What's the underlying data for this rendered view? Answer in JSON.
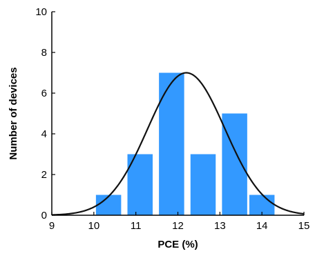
{
  "chart_data": {
    "type": "bar",
    "xlabel": "PCE (%)",
    "ylabel": "Number of devices",
    "xlim": [
      9,
      15
    ],
    "ylim": [
      0,
      10
    ],
    "xticks": [
      9,
      10,
      11,
      12,
      13,
      14,
      15
    ],
    "yticks": [
      0,
      2,
      4,
      6,
      8,
      10
    ],
    "bin_width": 0.6,
    "bars": [
      {
        "x": 10.35,
        "value": 1
      },
      {
        "x": 11.1,
        "value": 3
      },
      {
        "x": 11.85,
        "value": 7
      },
      {
        "x": 12.6,
        "value": 3
      },
      {
        "x": 13.35,
        "value": 5
      },
      {
        "x": 14.0,
        "value": 1
      }
    ],
    "fit_curve": {
      "type": "gaussian",
      "peak": 7,
      "mean": 12.2,
      "sigma": 0.92
    },
    "colors": {
      "bar": "#3399ff",
      "curve": "#111111",
      "axis": "#000000"
    },
    "grid": false
  }
}
